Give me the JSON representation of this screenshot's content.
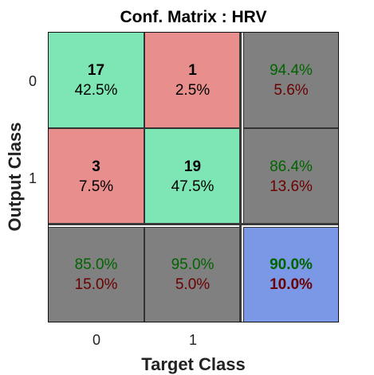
{
  "chart_data": {
    "type": "heatmap",
    "title": "Conf. Matrix : HRV",
    "xlabel": "Target Class",
    "ylabel": "Output Class",
    "x_ticks": [
      "0",
      "1"
    ],
    "y_ticks": [
      "0",
      "1"
    ],
    "matrix": [
      [
        17,
        1
      ],
      [
        3,
        19
      ]
    ],
    "cells": [
      [
        {
          "count": "17",
          "pct": "42.5%"
        },
        {
          "count": "1",
          "pct": "2.5%"
        },
        {
          "good": "94.4%",
          "bad": "5.6%"
        }
      ],
      [
        {
          "count": "3",
          "pct": "7.5%"
        },
        {
          "count": "19",
          "pct": "47.5%"
        },
        {
          "good": "86.4%",
          "bad": "13.6%"
        }
      ],
      [
        {
          "good": "85.0%",
          "bad": "15.0%"
        },
        {
          "good": "95.0%",
          "bad": "5.0%"
        },
        {
          "good": "90.0%",
          "bad": "10.0%"
        }
      ]
    ],
    "colors": {
      "correct": "#7de6b4",
      "incorrect": "#e88e8c",
      "summary": "#808080",
      "overall": "#7a98e6"
    }
  }
}
